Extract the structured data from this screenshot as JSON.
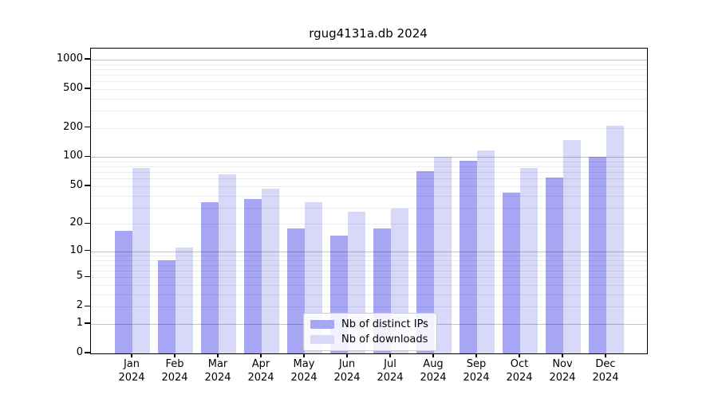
{
  "chart_data": {
    "type": "bar",
    "title": "rgug4131a.db 2024",
    "categories": [
      "Jan",
      "Feb",
      "Mar",
      "Apr",
      "May",
      "Jun",
      "Jul",
      "Aug",
      "Sep",
      "Oct",
      "Nov",
      "Dec"
    ],
    "category_sublabel": "2024",
    "series": [
      {
        "name": "Nb of distinct IPs",
        "color": "#a6a6f5",
        "values": [
          17,
          8,
          34,
          37,
          18,
          15,
          18,
          72,
          92,
          43,
          62,
          100
        ]
      },
      {
        "name": "Nb of downloads",
        "color": "#d8d8f8",
        "values": [
          78,
          11,
          67,
          47,
          34,
          27,
          29,
          100,
          117,
          78,
          150,
          209
        ]
      }
    ],
    "yscale": "log1p",
    "yticks": [
      0,
      1,
      2,
      5,
      10,
      20,
      50,
      100,
      200,
      500,
      1000
    ],
    "ylim": [
      0,
      1290
    ],
    "xlabel": "",
    "ylabel": "",
    "grid": "on",
    "legend_position": "lower center",
    "colors": {
      "major_gridline": "rgba(0,0,0,0.23)",
      "minor_gridline": "rgba(0,0,0,0.075)",
      "axis": "#000000",
      "background": "#ffffff"
    }
  }
}
